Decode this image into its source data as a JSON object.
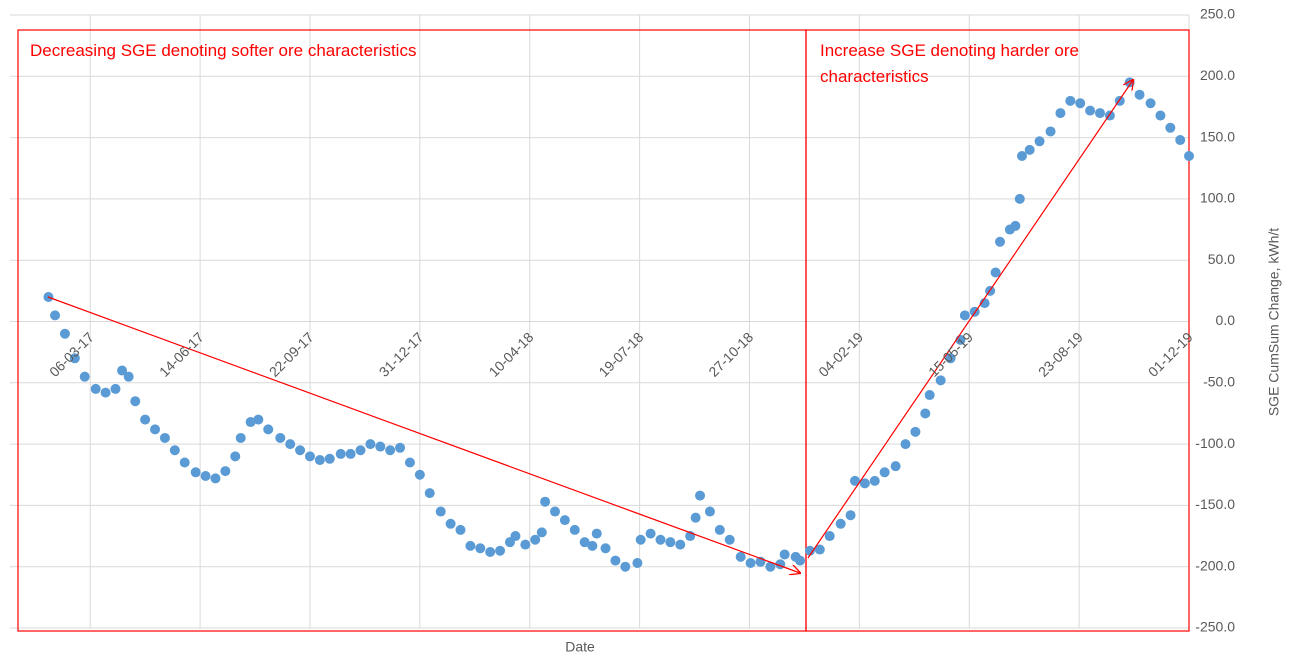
{
  "chart_data": {
    "type": "scatter",
    "x_label": "Date",
    "y_label": "SGE CumSum Change, kWh/t",
    "xlim": [
      "2016-12-23",
      "2019-12-01"
    ],
    "xticks": [
      {
        "value": "2017-03-06",
        "label": "06-03-17"
      },
      {
        "value": "2017-06-14",
        "label": "14-06-17"
      },
      {
        "value": "2017-09-22",
        "label": "22-09-17"
      },
      {
        "value": "2017-12-31",
        "label": "31-12-17"
      },
      {
        "value": "2018-04-10",
        "label": "10-04-18"
      },
      {
        "value": "2018-07-19",
        "label": "19-07-18"
      },
      {
        "value": "2018-10-27",
        "label": "27-10-18"
      },
      {
        "value": "2019-02-04",
        "label": "04-02-19"
      },
      {
        "value": "2019-05-15",
        "label": "15-05-19"
      },
      {
        "value": "2019-08-23",
        "label": "23-08-19"
      },
      {
        "value": "2019-12-01",
        "label": "01-12-19"
      }
    ],
    "ylim": [
      -250,
      250
    ],
    "yticks": [
      {
        "value": -250,
        "label": "-250.0"
      },
      {
        "value": -200,
        "label": "-200.0"
      },
      {
        "value": -150,
        "label": "-150.0"
      },
      {
        "value": -100,
        "label": "-100.0"
      },
      {
        "value": -50,
        "label": "-50.0"
      },
      {
        "value": 0,
        "label": "0.0"
      },
      {
        "value": 50,
        "label": "50.0"
      },
      {
        "value": 100,
        "label": "100.0"
      },
      {
        "value": 150,
        "label": "150.0"
      },
      {
        "value": 200,
        "label": "200.0"
      },
      {
        "value": 250,
        "label": "250.0"
      }
    ],
    "grid": true,
    "color": "#5b9bd5",
    "annotations": [
      "Decreasing SGE denoting softer ore characteristics",
      "Increase SGE denoting harder ore characteristics"
    ],
    "x": [
      "2017-01-27",
      "2017-02-02",
      "2017-02-11",
      "2017-02-20",
      "2017-03-01",
      "2017-03-11",
      "2017-03-20",
      "2017-03-29",
      "2017-04-04",
      "2017-04-10",
      "2017-04-16",
      "2017-04-25",
      "2017-05-04",
      "2017-05-13",
      "2017-05-22",
      "2017-05-31",
      "2017-06-10",
      "2017-06-19",
      "2017-06-28",
      "2017-07-07",
      "2017-07-16",
      "2017-07-21",
      "2017-07-30",
      "2017-08-06",
      "2017-08-15",
      "2017-08-26",
      "2017-09-04",
      "2017-09-13",
      "2017-09-22",
      "2017-10-01",
      "2017-10-10",
      "2017-10-20",
      "2017-10-29",
      "2017-11-07",
      "2017-11-16",
      "2017-11-25",
      "2017-12-04",
      "2017-12-13",
      "2017-12-22",
      "2017-12-31",
      "2018-01-09",
      "2018-01-19",
      "2018-01-28",
      "2018-02-06",
      "2018-02-15",
      "2018-02-24",
      "2018-03-05",
      "2018-03-14",
      "2018-03-23",
      "2018-03-28",
      "2018-04-06",
      "2018-04-15",
      "2018-04-21",
      "2018-04-24",
      "2018-05-03",
      "2018-05-12",
      "2018-05-21",
      "2018-05-30",
      "2018-06-06",
      "2018-06-10",
      "2018-06-18",
      "2018-06-27",
      "2018-07-06",
      "2018-07-17",
      "2018-07-20",
      "2018-07-29",
      "2018-08-07",
      "2018-08-16",
      "2018-08-25",
      "2018-09-03",
      "2018-09-08",
      "2018-09-12",
      "2018-09-21",
      "2018-09-30",
      "2018-10-09",
      "2018-10-19",
      "2018-10-28",
      "2018-11-06",
      "2018-11-15",
      "2018-11-24",
      "2018-11-28",
      "2018-12-08",
      "2018-12-12",
      "2018-12-21",
      "2018-12-30",
      "2019-01-08",
      "2019-01-18",
      "2019-01-27",
      "2019-01-31",
      "2019-02-09",
      "2019-02-18",
      "2019-02-27",
      "2019-03-09",
      "2019-03-18",
      "2019-03-27",
      "2019-04-05",
      "2019-04-09",
      "2019-04-19",
      "2019-04-28",
      "2019-05-07",
      "2019-05-11",
      "2019-05-20",
      "2019-05-29",
      "2019-06-03",
      "2019-06-08",
      "2019-06-12",
      "2019-06-21",
      "2019-06-26",
      "2019-06-30",
      "2019-07-02",
      "2019-07-09",
      "2019-07-18",
      "2019-07-28",
      "2019-08-06",
      "2019-08-15",
      "2019-08-24",
      "2019-09-02",
      "2019-09-11",
      "2019-09-20",
      "2019-09-29",
      "2019-10-08",
      "2019-10-17",
      "2019-10-27",
      "2019-11-05",
      "2019-11-14",
      "2019-11-23",
      "2019-12-01"
    ],
    "values": [
      20,
      5,
      -10,
      -30,
      -45,
      -55,
      -58,
      -55,
      -40,
      -45,
      -65,
      -80,
      -88,
      -95,
      -105,
      -115,
      -123,
      -126,
      -128,
      -122,
      -110,
      -95,
      -82,
      -80,
      -88,
      -95,
      -100,
      -105,
      -110,
      -113,
      -112,
      -108,
      -108,
      -105,
      -100,
      -102,
      -105,
      -103,
      -115,
      -125,
      -140,
      -155,
      -165,
      -170,
      -183,
      -185,
      -188,
      -187,
      -180,
      -175,
      -182,
      -178,
      -172,
      -147,
      -155,
      -162,
      -170,
      -180,
      -183,
      -173,
      -185,
      -195,
      -200,
      -197,
      -178,
      -173,
      -178,
      -180,
      -182,
      -175,
      -160,
      -142,
      -155,
      -170,
      -178,
      -192,
      -197,
      -196,
      -200,
      -198,
      -190,
      -192,
      -195,
      -187,
      -186,
      -175,
      -165,
      -158,
      -130,
      -132,
      -130,
      -123,
      -118,
      -100,
      -90,
      -75,
      -60,
      -48,
      -30,
      -15,
      5,
      8,
      15,
      25,
      40,
      65,
      75,
      78,
      100,
      135,
      140,
      147,
      155,
      170,
      180,
      178,
      172,
      170,
      168,
      180,
      195,
      185,
      178,
      168,
      158,
      148,
      135
    ]
  }
}
